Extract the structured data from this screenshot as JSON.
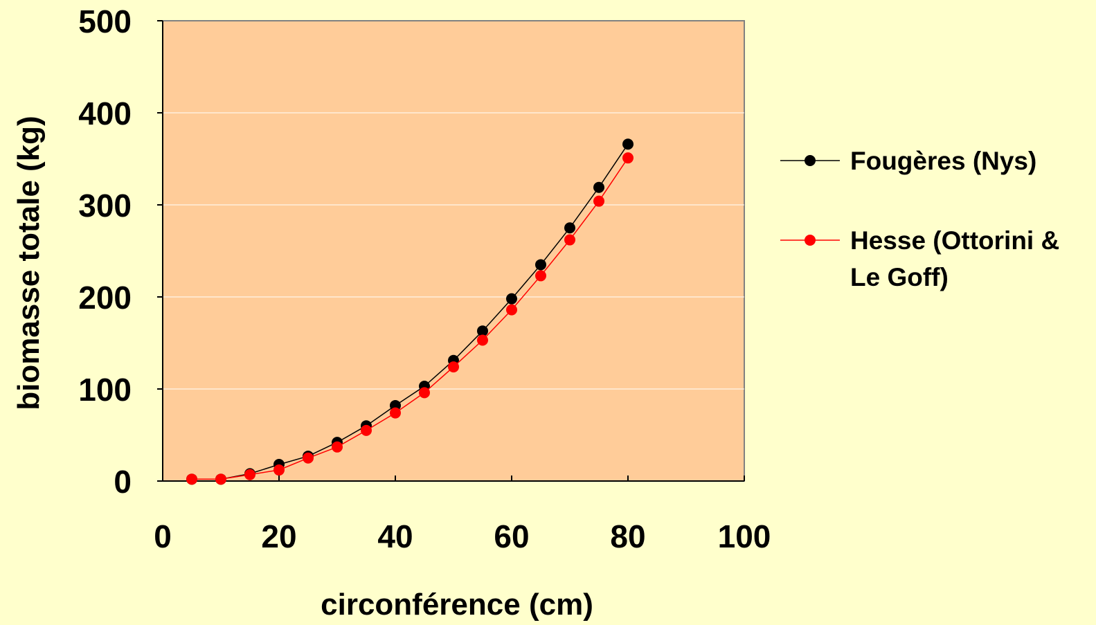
{
  "chart_data": {
    "type": "line",
    "title": "",
    "xlabel": "circonférence (cm)",
    "ylabel": "biomasse totale (kg)",
    "xlim": [
      0,
      100
    ],
    "ylim": [
      0,
      500
    ],
    "xticks": [
      0,
      20,
      40,
      60,
      80,
      100
    ],
    "yticks": [
      0,
      100,
      200,
      300,
      400,
      500
    ],
    "grid": true,
    "legend_position": "right",
    "plot_background": "#FFCC99",
    "page_background": "#FFFFCC",
    "series": [
      {
        "name": "Fougères (Nys)",
        "color": "#000000",
        "x": [
          5,
          10,
          15,
          20,
          25,
          30,
          35,
          40,
          45,
          50,
          55,
          60,
          65,
          70,
          75,
          80
        ],
        "y": [
          2,
          2,
          8,
          18,
          27,
          42,
          60,
          82,
          103,
          131,
          163,
          198,
          235,
          275,
          319,
          366
        ]
      },
      {
        "name": "Hesse (Ottorini & Le Goff)",
        "name_lines": [
          "Hesse (Ottorini &",
          "Le Goff)"
        ],
        "color": "#FF0000",
        "x": [
          5,
          10,
          15,
          20,
          25,
          30,
          35,
          40,
          45,
          50,
          55,
          60,
          65,
          70,
          75,
          80
        ],
        "y": [
          2,
          2,
          7,
          12,
          25,
          37,
          55,
          74,
          96,
          124,
          153,
          186,
          223,
          262,
          304,
          351
        ]
      }
    ]
  }
}
